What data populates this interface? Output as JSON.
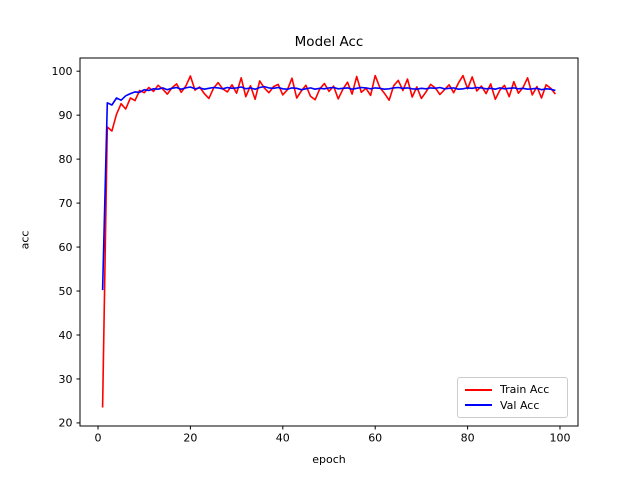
{
  "figure": {
    "title": "Model Acc",
    "xlabel": "epoch",
    "ylabel": "acc"
  },
  "legend": {
    "items": [
      {
        "label": "Train Acc",
        "color": "#ff0000"
      },
      {
        "label": "Val Acc",
        "color": "#0000ff"
      }
    ]
  },
  "chart_data": {
    "type": "line",
    "title": "Model Acc",
    "xlabel": "epoch",
    "ylabel": "acc",
    "xlim": [
      -3.9,
      103.9
    ],
    "ylim": [
      19.3,
      103.0
    ],
    "xticks": [
      0,
      20,
      40,
      60,
      80,
      100
    ],
    "yticks": [
      20,
      30,
      40,
      50,
      60,
      70,
      80,
      90,
      100
    ],
    "grid": false,
    "legend_position": "lower right",
    "x_start_epoch": 1,
    "series": [
      {
        "name": "Train Acc",
        "color": "#ff0000",
        "values": [
          23.5,
          87.3,
          86.4,
          90.2,
          92.6,
          91.4,
          93.9,
          93.3,
          95.6,
          95.1,
          96.3,
          95.4,
          96.8,
          95.9,
          94.8,
          96.2,
          97.1,
          95.2,
          96.6,
          98.9,
          95.7,
          96.4,
          94.9,
          93.8,
          96.1,
          97.4,
          96.0,
          95.3,
          96.9,
          95.0,
          98.5,
          94.2,
          96.7,
          93.6,
          97.8,
          96.2,
          95.1,
          96.5,
          97.0,
          94.6,
          95.8,
          98.4,
          93.9,
          95.5,
          96.8,
          94.3,
          93.5,
          96.0,
          97.2,
          95.4,
          96.6,
          93.7,
          95.9,
          97.5,
          94.8,
          98.8,
          95.2,
          96.1,
          94.5,
          99.0,
          96.3,
          95.0,
          93.4,
          96.7,
          97.9,
          95.6,
          98.2,
          94.1,
          96.4,
          93.8,
          95.3,
          97.0,
          96.2,
          94.7,
          95.8,
          96.9,
          95.1,
          97.3,
          99.0,
          96.0,
          98.7,
          95.5,
          96.6,
          94.9,
          97.1,
          93.6,
          95.7,
          96.8,
          94.2,
          97.6,
          95.0,
          96.3,
          98.5,
          94.6,
          96.5,
          93.9,
          96.9,
          96.1,
          94.8
        ]
      },
      {
        "name": "Val Acc",
        "color": "#0000ff",
        "values": [
          50.2,
          92.8,
          92.3,
          93.9,
          93.4,
          94.4,
          94.9,
          95.3,
          95.2,
          95.8,
          95.6,
          96.0,
          95.9,
          96.2,
          95.8,
          96.1,
          96.3,
          95.9,
          96.2,
          96.4,
          96.0,
          96.2,
          95.9,
          96.1,
          96.3,
          96.2,
          96.0,
          96.3,
          96.1,
          96.2,
          96.4,
          96.0,
          96.2,
          95.9,
          96.3,
          96.5,
          96.2,
          96.1,
          96.3,
          96.0,
          95.9,
          96.2,
          96.1,
          95.8,
          96.0,
          96.2,
          95.9,
          96.1,
          96.0,
          96.2,
          96.3,
          96.0,
          96.1,
          96.2,
          95.9,
          96.1,
          96.3,
          96.2,
          96.0,
          96.2,
          96.1,
          95.9,
          96.0,
          96.2,
          96.3,
          96.1,
          96.2,
          96.0,
          95.9,
          96.1,
          96.0,
          96.2,
          96.1,
          96.3,
          96.0,
          96.1,
          96.2,
          95.9,
          96.0,
          96.2,
          96.1,
          96.3,
          96.2,
          96.0,
          96.1,
          95.9,
          96.2,
          96.0,
          96.1,
          96.2,
          96.0,
          96.1,
          95.9,
          96.0,
          96.1,
          95.8,
          96.0,
          95.9,
          95.6
        ]
      }
    ]
  }
}
